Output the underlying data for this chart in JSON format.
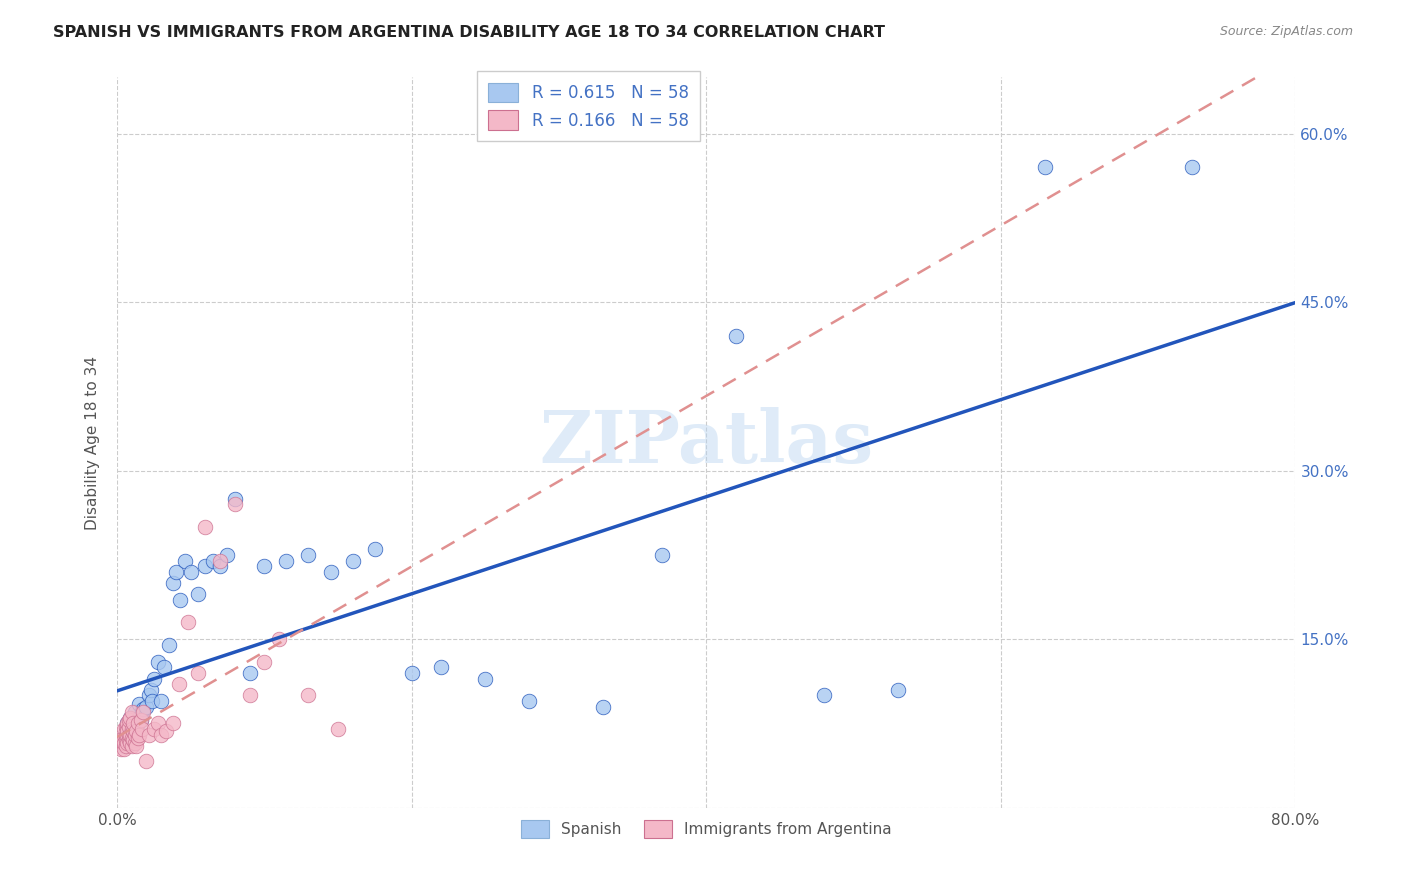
{
  "title": "SPANISH VS IMMIGRANTS FROM ARGENTINA DISABILITY AGE 18 TO 34 CORRELATION CHART",
  "source": "Source: ZipAtlas.com",
  "ylabel": "Disability Age 18 to 34",
  "xlim": [
    0.0,
    0.8
  ],
  "ylim": [
    0.0,
    0.65
  ],
  "xticks": [
    0.0,
    0.2,
    0.4,
    0.6,
    0.8
  ],
  "xticklabels": [
    "0.0%",
    "",
    "",
    "",
    "80.0%"
  ],
  "ytick_positions": [
    0.0,
    0.15,
    0.3,
    0.45,
    0.6
  ],
  "ytick_labels": [
    "",
    "15.0%",
    "30.0%",
    "45.0%",
    "60.0%"
  ],
  "R_spanish": 0.615,
  "N_spanish": 58,
  "R_argentina": 0.166,
  "N_argentina": 58,
  "color_spanish": "#a8c8f0",
  "color_argentina": "#f4b8c8",
  "line_color_spanish": "#2255bb",
  "line_color_argentina": "#e09090",
  "background_color": "#ffffff",
  "grid_color": "#cccccc",
  "watermark": "ZIPatlas",
  "legend_text_color": "#4472c4",
  "spanish_x": [
    0.005,
    0.006,
    0.007,
    0.007,
    0.008,
    0.008,
    0.009,
    0.009,
    0.01,
    0.01,
    0.011,
    0.012,
    0.012,
    0.013,
    0.014,
    0.015,
    0.015,
    0.016,
    0.017,
    0.018,
    0.02,
    0.022,
    0.023,
    0.024,
    0.025,
    0.028,
    0.03,
    0.032,
    0.035,
    0.038,
    0.04,
    0.043,
    0.046,
    0.05,
    0.055,
    0.06,
    0.065,
    0.07,
    0.075,
    0.08,
    0.09,
    0.1,
    0.115,
    0.13,
    0.145,
    0.16,
    0.175,
    0.2,
    0.22,
    0.25,
    0.28,
    0.33,
    0.37,
    0.42,
    0.48,
    0.53,
    0.63,
    0.73
  ],
  "spanish_y": [
    0.055,
    0.065,
    0.07,
    0.075,
    0.06,
    0.072,
    0.068,
    0.08,
    0.058,
    0.074,
    0.078,
    0.065,
    0.085,
    0.07,
    0.075,
    0.08,
    0.092,
    0.078,
    0.085,
    0.088,
    0.09,
    0.1,
    0.105,
    0.095,
    0.115,
    0.13,
    0.095,
    0.125,
    0.145,
    0.2,
    0.21,
    0.185,
    0.22,
    0.21,
    0.19,
    0.215,
    0.22,
    0.215,
    0.225,
    0.275,
    0.12,
    0.215,
    0.22,
    0.225,
    0.21,
    0.22,
    0.23,
    0.12,
    0.125,
    0.115,
    0.095,
    0.09,
    0.225,
    0.42,
    0.1,
    0.105,
    0.57,
    0.57
  ],
  "argentina_x": [
    0.003,
    0.004,
    0.004,
    0.005,
    0.005,
    0.005,
    0.005,
    0.006,
    0.006,
    0.006,
    0.006,
    0.007,
    0.007,
    0.007,
    0.007,
    0.007,
    0.008,
    0.008,
    0.008,
    0.008,
    0.009,
    0.009,
    0.009,
    0.01,
    0.01,
    0.01,
    0.01,
    0.011,
    0.011,
    0.011,
    0.012,
    0.012,
    0.013,
    0.013,
    0.014,
    0.014,
    0.015,
    0.016,
    0.017,
    0.018,
    0.02,
    0.022,
    0.025,
    0.028,
    0.03,
    0.033,
    0.038,
    0.042,
    0.048,
    0.055,
    0.06,
    0.07,
    0.08,
    0.09,
    0.1,
    0.11,
    0.13,
    0.15
  ],
  "argentina_y": [
    0.052,
    0.058,
    0.06,
    0.052,
    0.058,
    0.065,
    0.07,
    0.055,
    0.06,
    0.065,
    0.072,
    0.058,
    0.065,
    0.07,
    0.075,
    0.068,
    0.06,
    0.065,
    0.072,
    0.078,
    0.058,
    0.065,
    0.08,
    0.055,
    0.062,
    0.07,
    0.085,
    0.06,
    0.068,
    0.075,
    0.058,
    0.065,
    0.055,
    0.068,
    0.062,
    0.075,
    0.065,
    0.078,
    0.07,
    0.085,
    0.042,
    0.065,
    0.07,
    0.075,
    0.065,
    0.068,
    0.075,
    0.11,
    0.165,
    0.12,
    0.25,
    0.22,
    0.27,
    0.1,
    0.13,
    0.15,
    0.1,
    0.07
  ]
}
